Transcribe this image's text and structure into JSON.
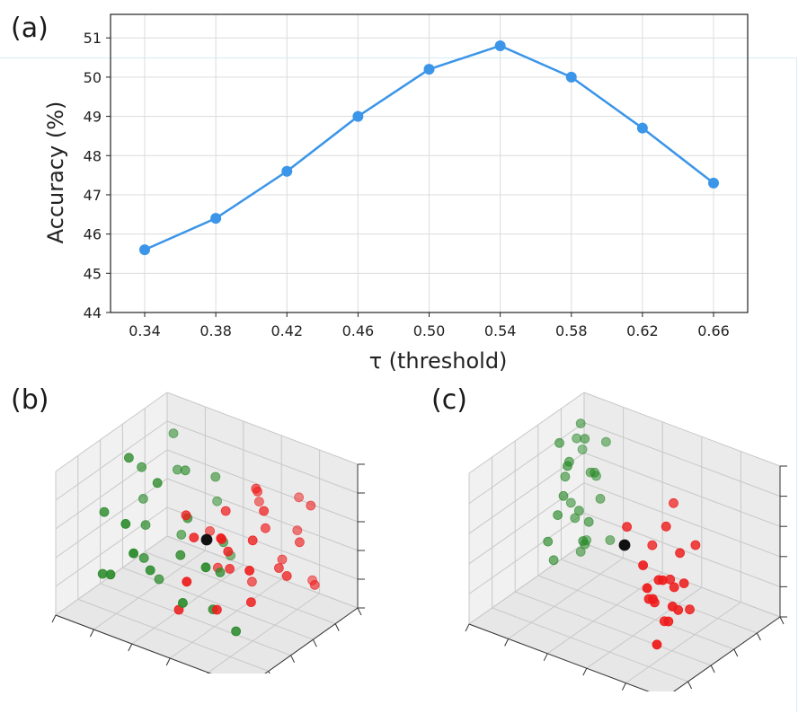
{
  "panels": {
    "a": "(a)",
    "b": "(b)",
    "c": "(c)"
  },
  "colors": {
    "line": "#3b95e8",
    "green": "#2a8a2a",
    "red": "#ee1c1c",
    "center": "#111111"
  },
  "chart_data": [
    {
      "type": "line",
      "panel": "(a)",
      "x": [
        0.34,
        0.38,
        0.42,
        0.46,
        0.5,
        0.54,
        0.58,
        0.62,
        0.66
      ],
      "x_tick_labels": [
        "0.34",
        "0.38",
        "0.42",
        "0.46",
        "0.50",
        "0.54",
        "0.58",
        "0.62",
        "0.66"
      ],
      "series": [
        {
          "name": "Accuracy",
          "values": [
            45.6,
            46.4,
            47.6,
            49.0,
            50.2,
            50.8,
            50.0,
            48.7,
            47.3
          ]
        }
      ],
      "y_ticks": [
        44,
        45,
        46,
        47,
        48,
        49,
        50,
        51
      ],
      "ylim": [
        44,
        51.6
      ],
      "xlabel": "τ (threshold)",
      "ylabel": "Accuracy (%)",
      "grid": true,
      "legend": "none"
    },
    {
      "type": "scatter",
      "panel": "(b)",
      "description_3d": true,
      "series": [
        {
          "name": "green",
          "points": [
            [
              -0.8,
              0.2,
              0.5
            ],
            [
              -0.6,
              0.5,
              0.4
            ],
            [
              -0.9,
              -0.3,
              0.1
            ],
            [
              -0.7,
              0.1,
              -0.2
            ],
            [
              -0.5,
              -0.6,
              0.3
            ],
            [
              -0.4,
              0.3,
              0.6
            ],
            [
              -0.6,
              -0.1,
              -0.5
            ],
            [
              -0.3,
              -0.5,
              -0.3
            ],
            [
              -0.7,
              0.6,
              0.8
            ],
            [
              -0.2,
              0.0,
              0.2
            ],
            [
              -0.5,
              0.4,
              -0.4
            ],
            [
              -0.8,
              -0.5,
              -0.6
            ],
            [
              -0.3,
              0.7,
              0.0
            ],
            [
              -0.1,
              -0.3,
              -0.1
            ],
            [
              -0.6,
              -0.7,
              -0.4
            ],
            [
              -0.4,
              -0.2,
              0.7
            ],
            [
              -0.9,
              0.4,
              -0.1
            ],
            [
              -0.2,
              0.5,
              0.5
            ],
            [
              0.1,
              -0.6,
              -0.5
            ],
            [
              -0.5,
              0.0,
              -0.8
            ],
            [
              -0.3,
              -0.8,
              0.1
            ],
            [
              0.0,
              0.3,
              -0.2
            ],
            [
              0.3,
              -0.4,
              -0.6
            ],
            [
              0.6,
              -0.5,
              -0.7
            ],
            [
              -0.1,
              0.6,
              -0.6
            ],
            [
              0.2,
              -0.1,
              -0.3
            ],
            [
              -0.7,
              -0.2,
              0.9
            ],
            [
              0.4,
              -0.7,
              0.2
            ]
          ]
        },
        {
          "name": "red",
          "points": [
            [
              0.5,
              0.2,
              0.3
            ],
            [
              0.6,
              -0.2,
              0.4
            ],
            [
              0.3,
              0.4,
              0.6
            ],
            [
              0.7,
              0.1,
              -0.1
            ],
            [
              0.4,
              -0.3,
              0.2
            ],
            [
              0.8,
              0.3,
              0.2
            ],
            [
              0.2,
              0.0,
              0.5
            ],
            [
              0.5,
              0.5,
              -0.3
            ],
            [
              0.9,
              -0.1,
              0.0
            ],
            [
              0.1,
              -0.4,
              0.3
            ],
            [
              0.6,
              0.6,
              0.1
            ],
            [
              0.3,
              -0.1,
              -0.2
            ],
            [
              0.7,
              -0.4,
              -0.3
            ],
            [
              0.4,
              0.2,
              0.8
            ],
            [
              0.2,
              0.6,
              0.3
            ],
            [
              0.0,
              0.2,
              -0.5
            ],
            [
              0.8,
              0.5,
              0.6
            ],
            [
              0.5,
              -0.6,
              0.6
            ],
            [
              -0.1,
              -0.2,
              0.4
            ],
            [
              0.3,
              0.3,
              -0.6
            ],
            [
              0.6,
              0.0,
              0.7
            ],
            [
              0.9,
              0.4,
              -0.4
            ],
            [
              0.1,
              0.1,
              0.0
            ],
            [
              0.4,
              -0.5,
              -0.5
            ],
            [
              0.7,
              0.7,
              -0.6
            ],
            [
              -0.2,
              0.4,
              -0.2
            ],
            [
              0.8,
              -0.6,
              0.3
            ],
            [
              0.2,
              -0.7,
              -0.1
            ],
            [
              0.5,
              0.8,
              0.4
            ],
            [
              0.0,
              -0.5,
              -0.7
            ]
          ]
        },
        {
          "name": "center",
          "points": [
            [
              0.0,
              0.0,
              0.0
            ]
          ]
        }
      ]
    },
    {
      "type": "scatter",
      "panel": "(c)",
      "description_3d": true,
      "series": [
        {
          "name": "green",
          "points": [
            [
              -0.8,
              0.6,
              0.9
            ],
            [
              -0.7,
              0.5,
              0.8
            ],
            [
              -0.9,
              0.7,
              0.6
            ],
            [
              -0.8,
              0.4,
              0.5
            ],
            [
              -0.7,
              0.6,
              0.3
            ],
            [
              -0.9,
              0.5,
              0.2
            ],
            [
              -0.8,
              0.3,
              0.1
            ],
            [
              -0.6,
              0.6,
              0.0
            ],
            [
              -0.7,
              0.4,
              -0.1
            ],
            [
              -0.9,
              0.6,
              -0.2
            ],
            [
              -0.8,
              0.5,
              -0.3
            ],
            [
              -0.6,
              0.3,
              -0.4
            ],
            [
              -0.9,
              0.2,
              -0.5
            ],
            [
              -0.7,
              0.5,
              -0.6
            ],
            [
              -0.8,
              0.7,
              -0.7
            ],
            [
              -0.6,
              0.5,
              0.4
            ],
            [
              -0.9,
              0.4,
              0.7
            ],
            [
              -0.7,
              0.7,
              0.2
            ],
            [
              -0.6,
              0.4,
              -0.2
            ],
            [
              -0.8,
              0.2,
              -0.1
            ],
            [
              -0.9,
              0.8,
              0.4
            ],
            [
              -0.7,
              0.2,
              0.6
            ],
            [
              -0.5,
              0.6,
              -0.5
            ],
            [
              -0.8,
              0.6,
              -0.8
            ],
            [
              -0.6,
              0.7,
              0.7
            ],
            [
              -0.9,
              0.3,
              -0.8
            ]
          ]
        },
        {
          "name": "red",
          "points": [
            [
              0.7,
              -0.6,
              0.2
            ],
            [
              0.8,
              -0.5,
              0.1
            ],
            [
              0.7,
              -0.7,
              0.0
            ],
            [
              0.9,
              -0.6,
              -0.1
            ],
            [
              0.8,
              -0.7,
              0.3
            ],
            [
              0.6,
              -0.5,
              -0.2
            ],
            [
              0.7,
              -0.4,
              0.1
            ],
            [
              0.9,
              -0.5,
              0.2
            ],
            [
              0.8,
              -0.6,
              -0.3
            ],
            [
              0.6,
              -0.7,
              0.4
            ],
            [
              0.7,
              -0.5,
              -0.4
            ],
            [
              0.9,
              -0.7,
              0.0
            ],
            [
              0.8,
              -0.4,
              0.5
            ],
            [
              0.6,
              -0.6,
              -0.1
            ],
            [
              0.7,
              -0.8,
              0.2
            ],
            [
              0.9,
              -0.4,
              -0.2
            ],
            [
              0.2,
              -0.3,
              0.5
            ],
            [
              0.4,
              -0.2,
              0.3
            ],
            [
              0.5,
              0.0,
              0.8
            ],
            [
              0.9,
              -0.3,
              0.6
            ],
            [
              0.8,
              -0.8,
              -0.5
            ],
            [
              0.6,
              -0.3,
              0.7
            ]
          ]
        },
        {
          "name": "center",
          "points": [
            [
              0.0,
              0.0,
              0.0
            ]
          ]
        }
      ]
    }
  ]
}
